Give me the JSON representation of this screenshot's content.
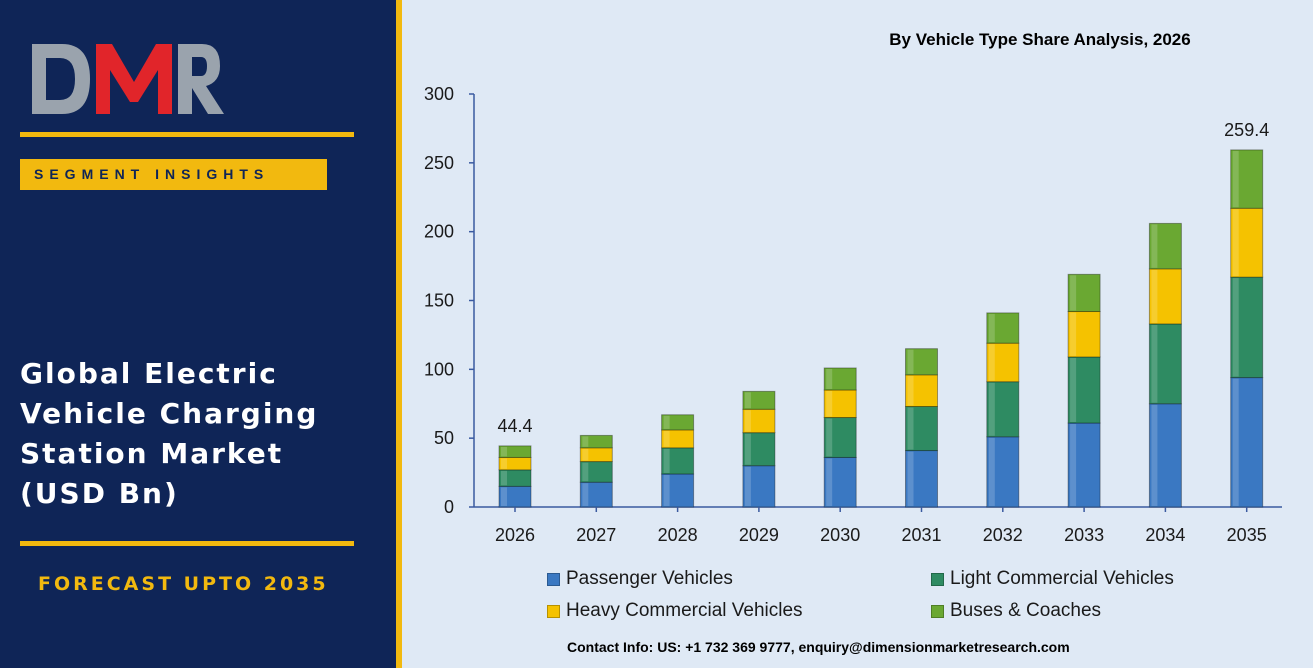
{
  "brand": {
    "logo_text": "DMR",
    "segment_label": "SEGMENT INSIGHTS",
    "market_title": "Global Electric\nVehicle Charging\nStation Market\n(USD Bn)",
    "forecast_label": "FORECAST UPTO 2035"
  },
  "colors": {
    "panel_navy": "#0f2557",
    "accent_gold": "#f2b90f",
    "logo_red": "#e1252a",
    "logo_grey": "#9aa3ad",
    "chart_background": "#dfe9f5"
  },
  "contact": "Contact Info: US: +1 732 369 9777, enquiry@dimensionmarketresearch.com",
  "chart_data": {
    "type": "bar",
    "stacked": true,
    "title": "By Vehicle Type Share Analysis, 2026",
    "xlabel": "",
    "ylabel": "",
    "ylim": [
      0,
      300
    ],
    "yticks": [
      0,
      50,
      100,
      150,
      200,
      250,
      300
    ],
    "grid": false,
    "legend_position": "bottom",
    "categories": [
      "2026",
      "2027",
      "2028",
      "2029",
      "2030",
      "2031",
      "2032",
      "2033",
      "2034",
      "2035"
    ],
    "series": [
      {
        "name": "Passenger Vehicles",
        "color": "#3a78c2",
        "values": [
          15,
          18,
          24,
          30,
          36,
          41,
          51,
          61,
          75,
          94
        ]
      },
      {
        "name": "Light Commercial Vehicles",
        "color": "#2e8b62",
        "values": [
          12,
          15,
          19,
          24,
          29,
          32,
          40,
          48,
          58,
          73
        ]
      },
      {
        "name": "Heavy Commercial Vehicles",
        "color": "#f5c200",
        "values": [
          9,
          10,
          13,
          17,
          20,
          23,
          28,
          33,
          40,
          50
        ]
      },
      {
        "name": "Buses & Coaches",
        "color": "#6aa832",
        "values": [
          8.4,
          9,
          11,
          13,
          16,
          19,
          22,
          27,
          33,
          42.4
        ]
      }
    ],
    "annotations": [
      {
        "category": "2026",
        "text": "44.4"
      },
      {
        "category": "2035",
        "text": "259.4"
      }
    ]
  }
}
